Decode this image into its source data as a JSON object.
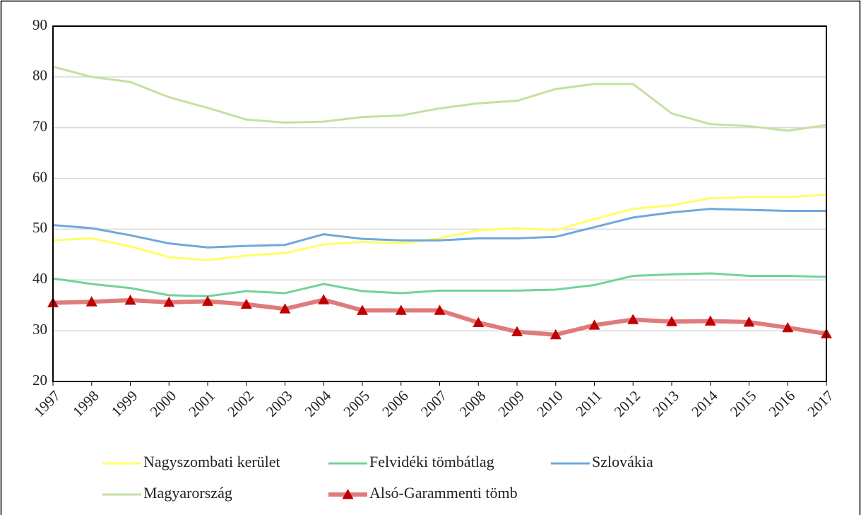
{
  "chart_data": {
    "type": "line",
    "x": [
      1997,
      1998,
      1999,
      2000,
      2001,
      2002,
      2003,
      2004,
      2005,
      2006,
      2007,
      2008,
      2009,
      2010,
      2011,
      2012,
      2013,
      2014,
      2015,
      2016,
      2017
    ],
    "xlim": [
      1997,
      2017
    ],
    "xticks": [
      1997,
      1998,
      1999,
      2000,
      2001,
      2002,
      2003,
      2004,
      2005,
      2006,
      2007,
      2008,
      2009,
      2010,
      2011,
      2012,
      2013,
      2014,
      2015,
      2016,
      2017
    ],
    "ylim": [
      20,
      90
    ],
    "yticks": [
      20,
      30,
      40,
      50,
      60,
      70,
      80,
      90
    ],
    "grid": true,
    "series": [
      {
        "name": "Nagyszombati kerület",
        "color": "#ffff66",
        "line_width": 3,
        "values": [
          47.8,
          48.2,
          46.6,
          44.5,
          43.9,
          44.8,
          45.3,
          47.0,
          47.5,
          47.2,
          48.2,
          49.8,
          50.2,
          49.8,
          52.0,
          54.0,
          54.7,
          56.1,
          56.3,
          56.3,
          56.8
        ]
      },
      {
        "name": "Felvidéki tömbátlag",
        "color": "#72d39b",
        "line_width": 3,
        "values": [
          40.3,
          39.2,
          38.4,
          37.0,
          36.8,
          37.8,
          37.4,
          39.2,
          37.8,
          37.4,
          37.9,
          37.9,
          37.9,
          38.1,
          39.0,
          40.8,
          41.1,
          41.3,
          40.8,
          40.8,
          40.6
        ]
      },
      {
        "name": "Szlovákia",
        "color": "#6fa8dc",
        "line_width": 3,
        "values": [
          50.8,
          50.2,
          48.8,
          47.2,
          46.4,
          46.7,
          46.9,
          49.0,
          48.1,
          47.8,
          47.8,
          48.2,
          48.2,
          48.5,
          50.4,
          52.3,
          53.3,
          54.0,
          53.8,
          53.6,
          53.6
        ]
      },
      {
        "name": "Magyarország",
        "color": "#c5e0a0",
        "line_width": 3,
        "values": [
          82.0,
          80.0,
          79.0,
          76.0,
          73.9,
          71.6,
          71.0,
          71.2,
          72.1,
          72.4,
          73.8,
          74.8,
          75.3,
          77.6,
          78.6,
          78.6,
          72.8,
          70.7,
          70.3,
          69.4,
          70.5
        ]
      },
      {
        "name": "Alsó-Garammenti tömb",
        "color": "#e07b7b",
        "line_width": 6,
        "marker": "triangle",
        "marker_color": "#c00000",
        "values": [
          35.5,
          35.7,
          36.0,
          35.6,
          35.8,
          35.2,
          34.3,
          36.1,
          34.0,
          34.0,
          34.0,
          31.6,
          29.8,
          29.2,
          31.1,
          32.2,
          31.8,
          31.9,
          31.7,
          30.6,
          29.4
        ]
      }
    ]
  }
}
